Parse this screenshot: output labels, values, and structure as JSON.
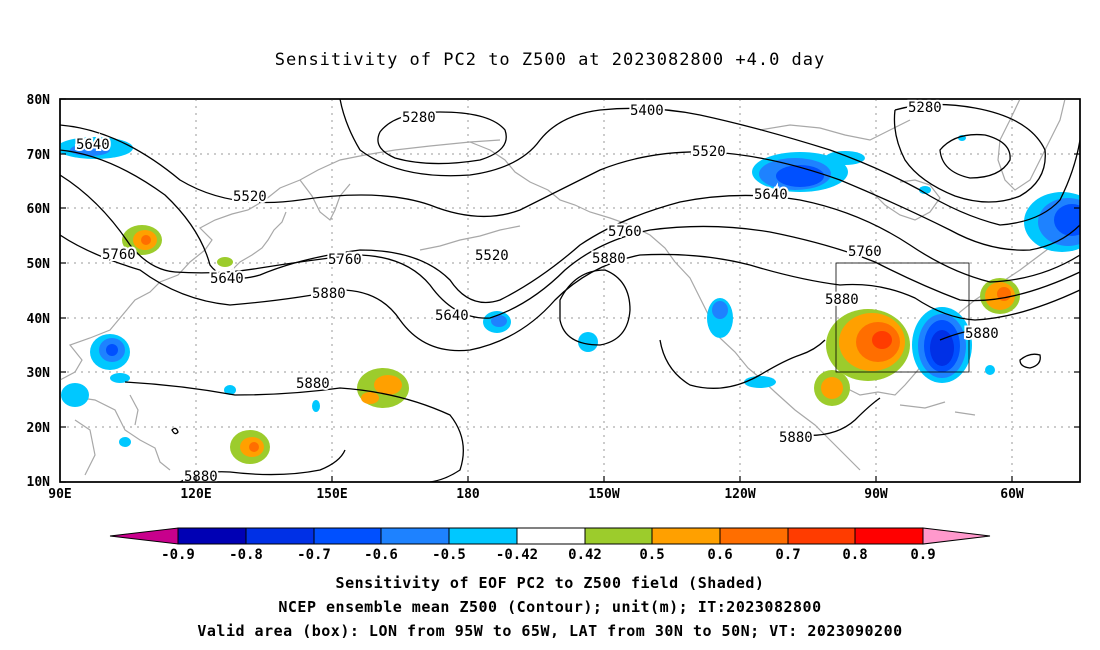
{
  "title": "Sensitivity of PC2 to Z500 at 2023082800 +4.0 day",
  "map": {
    "lat_labels": [
      "80N",
      "70N",
      "60N",
      "50N",
      "40N",
      "30N",
      "20N",
      "10N"
    ],
    "lon_labels": [
      "90E",
      "120E",
      "150E",
      "180",
      "150W",
      "120W",
      "90W",
      "60W"
    ],
    "contour_labels": {
      "c5280a": "5280",
      "c5280b": "5280",
      "c5400": "5400",
      "c5520a": "5520",
      "c5520b": "5520",
      "c5520c": "5520",
      "c5640a": "5640",
      "c5640b": "5640",
      "c5640c": "5640",
      "c5640d": "5640",
      "c5760a": "5760",
      "c5760b": "5760",
      "c5760c": "5760",
      "c5760d": "5760",
      "c5880a": "5880",
      "c5880b": "5880",
      "c5880c": "5880",
      "c5880d": "5880",
      "c5880e": "5880",
      "c5880f": "5880",
      "c5880g": "5880"
    },
    "valid_box": {
      "lon_from": "95W",
      "lon_to": "65W",
      "lat_from": "30N",
      "lat_to": "50N"
    }
  },
  "colorbar": {
    "labels": [
      "-0.9",
      "-0.8",
      "-0.7",
      "-0.6",
      "-0.5",
      "-0.42",
      "0.42",
      "0.5",
      "0.6",
      "0.7",
      "0.8",
      "0.9"
    ],
    "colors": [
      "#c8008c",
      "#0000b4",
      "#0030e6",
      "#0050ff",
      "#1e82ff",
      "#00c8ff",
      "#ffffff",
      "#9ccc2c",
      "#ffa000",
      "#ff6e00",
      "#ff3c00",
      "#ff0000",
      "#ff99cc"
    ]
  },
  "captions": {
    "line1": "Sensitivity of EOF PC2 to Z500 field (Shaded)",
    "line2": "NCEP ensemble mean Z500 (Contour); unit(m); IT:2023082800",
    "line3": "Valid area (box): LON from 95W to 65W, LAT from 30N to 50N; VT: 2023090200"
  }
}
